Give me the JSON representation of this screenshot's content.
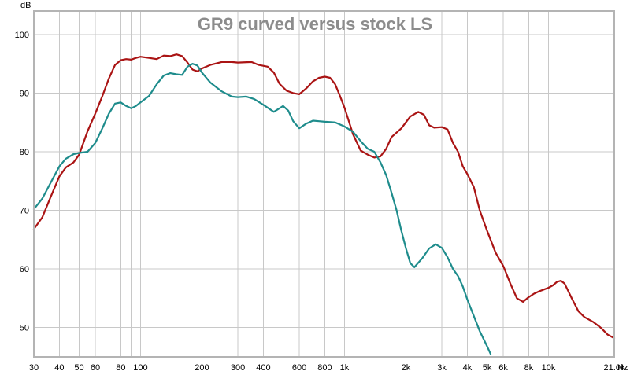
{
  "chart_data": {
    "type": "line",
    "title": "GR9 curved versus stock LS",
    "ylabel": "dB",
    "xlabel": "Hz",
    "x_scale": "log",
    "xlim": [
      30,
      21000
    ],
    "ylim": [
      45,
      104
    ],
    "grid": true,
    "legend": "none",
    "y_ticks": [
      50,
      60,
      70,
      80,
      90,
      100
    ],
    "x_major_ticks": [
      {
        "value": 30,
        "label": "30"
      },
      {
        "value": 40,
        "label": "40"
      },
      {
        "value": 50,
        "label": "50"
      },
      {
        "value": 60,
        "label": "60"
      },
      {
        "value": 80,
        "label": "80"
      },
      {
        "value": 100,
        "label": "100"
      },
      {
        "value": 200,
        "label": "200"
      },
      {
        "value": 300,
        "label": "300"
      },
      {
        "value": 400,
        "label": "400"
      },
      {
        "value": 600,
        "label": "600"
      },
      {
        "value": 800,
        "label": "800"
      },
      {
        "value": 1000,
        "label": "1k"
      },
      {
        "value": 2000,
        "label": "2k"
      },
      {
        "value": 3000,
        "label": "3k"
      },
      {
        "value": 4000,
        "label": "4k"
      },
      {
        "value": 5000,
        "label": "5k"
      },
      {
        "value": 6000,
        "label": "6k"
      },
      {
        "value": 8000,
        "label": "8k"
      },
      {
        "value": 10000,
        "label": "10k"
      },
      {
        "value": 21000,
        "label": "21.0k"
      }
    ],
    "x_minor_gridlines": [
      70,
      90,
      500,
      700,
      900,
      7000,
      9000,
      20000
    ],
    "series": [
      {
        "color": "#aa1414",
        "points": [
          [
            30,
            66.8
          ],
          [
            33,
            68.8
          ],
          [
            36,
            72
          ],
          [
            40,
            75.8
          ],
          [
            43,
            77.3
          ],
          [
            47,
            78.2
          ],
          [
            50,
            79.5
          ],
          [
            55,
            83.5
          ],
          [
            60,
            86.5
          ],
          [
            65,
            89.5
          ],
          [
            70,
            92.5
          ],
          [
            75,
            94.8
          ],
          [
            80,
            95.6
          ],
          [
            85,
            95.8
          ],
          [
            90,
            95.7
          ],
          [
            95,
            96
          ],
          [
            100,
            96.2
          ],
          [
            110,
            96
          ],
          [
            120,
            95.8
          ],
          [
            130,
            96.4
          ],
          [
            140,
            96.3
          ],
          [
            150,
            96.6
          ],
          [
            160,
            96.3
          ],
          [
            170,
            95.2
          ],
          [
            180,
            94
          ],
          [
            190,
            93.7
          ],
          [
            200,
            94.2
          ],
          [
            220,
            94.8
          ],
          [
            250,
            95.3
          ],
          [
            280,
            95.3
          ],
          [
            300,
            95.2
          ],
          [
            350,
            95.3
          ],
          [
            380,
            94.8
          ],
          [
            420,
            94.5
          ],
          [
            450,
            93.5
          ],
          [
            480,
            91.6
          ],
          [
            520,
            90.4
          ],
          [
            560,
            90
          ],
          [
            600,
            89.8
          ],
          [
            650,
            90.8
          ],
          [
            700,
            92
          ],
          [
            750,
            92.6
          ],
          [
            800,
            92.8
          ],
          [
            850,
            92.6
          ],
          [
            900,
            91.5
          ],
          [
            950,
            89.5
          ],
          [
            1000,
            87.5
          ],
          [
            1100,
            83
          ],
          [
            1200,
            80.2
          ],
          [
            1300,
            79.5
          ],
          [
            1400,
            79
          ],
          [
            1500,
            79.2
          ],
          [
            1600,
            80.5
          ],
          [
            1700,
            82.5
          ],
          [
            1900,
            84
          ],
          [
            2100,
            86
          ],
          [
            2300,
            86.8
          ],
          [
            2450,
            86.3
          ],
          [
            2600,
            84.5
          ],
          [
            2750,
            84.1
          ],
          [
            3000,
            84.2
          ],
          [
            3200,
            83.8
          ],
          [
            3400,
            81.5
          ],
          [
            3600,
            80
          ],
          [
            3800,
            77.5
          ],
          [
            4000,
            76.2
          ],
          [
            4300,
            74
          ],
          [
            4600,
            70
          ],
          [
            5000,
            66.5
          ],
          [
            5500,
            62.8
          ],
          [
            6000,
            60.5
          ],
          [
            6500,
            57.5
          ],
          [
            7000,
            55
          ],
          [
            7500,
            54.4
          ],
          [
            8000,
            55.2
          ],
          [
            8500,
            55.8
          ],
          [
            9000,
            56.2
          ],
          [
            9500,
            56.5
          ],
          [
            10000,
            56.8
          ],
          [
            10500,
            57.2
          ],
          [
            11000,
            57.8
          ],
          [
            11500,
            58
          ],
          [
            12000,
            57.5
          ],
          [
            13000,
            55
          ],
          [
            14000,
            52.8
          ],
          [
            15000,
            51.8
          ],
          [
            16500,
            51
          ],
          [
            18000,
            50
          ],
          [
            19500,
            48.8
          ],
          [
            21000,
            48.2
          ]
        ]
      },
      {
        "color": "#1e8c8c",
        "points": [
          [
            30,
            70.2
          ],
          [
            33,
            72
          ],
          [
            36,
            74.5
          ],
          [
            40,
            77.5
          ],
          [
            43,
            78.8
          ],
          [
            47,
            79.6
          ],
          [
            50,
            79.8
          ],
          [
            55,
            80
          ],
          [
            60,
            81.5
          ],
          [
            65,
            84
          ],
          [
            70,
            86.5
          ],
          [
            75,
            88.2
          ],
          [
            80,
            88.4
          ],
          [
            85,
            87.8
          ],
          [
            90,
            87.4
          ],
          [
            95,
            87.8
          ],
          [
            100,
            88.4
          ],
          [
            110,
            89.5
          ],
          [
            120,
            91.5
          ],
          [
            130,
            93
          ],
          [
            140,
            93.4
          ],
          [
            150,
            93.2
          ],
          [
            160,
            93.1
          ],
          [
            170,
            94.5
          ],
          [
            180,
            95
          ],
          [
            190,
            94.7
          ],
          [
            200,
            93.5
          ],
          [
            220,
            91.8
          ],
          [
            250,
            90.3
          ],
          [
            280,
            89.4
          ],
          [
            300,
            89.3
          ],
          [
            330,
            89.4
          ],
          [
            360,
            89
          ],
          [
            400,
            88
          ],
          [
            450,
            86.8
          ],
          [
            480,
            87.4
          ],
          [
            500,
            87.8
          ],
          [
            530,
            87
          ],
          [
            560,
            85.2
          ],
          [
            600,
            84
          ],
          [
            650,
            84.8
          ],
          [
            700,
            85.3
          ],
          [
            750,
            85.2
          ],
          [
            800,
            85.1
          ],
          [
            900,
            85
          ],
          [
            1000,
            84.3
          ],
          [
            1100,
            83.4
          ],
          [
            1200,
            81.8
          ],
          [
            1300,
            80.5
          ],
          [
            1400,
            80
          ],
          [
            1500,
            78.2
          ],
          [
            1600,
            76
          ],
          [
            1700,
            73
          ],
          [
            1800,
            70
          ],
          [
            1900,
            66.5
          ],
          [
            2000,
            63.5
          ],
          [
            2100,
            61
          ],
          [
            2200,
            60.3
          ],
          [
            2400,
            61.8
          ],
          [
            2600,
            63.5
          ],
          [
            2800,
            64.2
          ],
          [
            3000,
            63.6
          ],
          [
            3200,
            62
          ],
          [
            3400,
            60
          ],
          [
            3600,
            58.8
          ],
          [
            3800,
            57
          ],
          [
            4000,
            54.8
          ],
          [
            4300,
            52
          ],
          [
            4600,
            49.4
          ],
          [
            5000,
            46.8
          ],
          [
            5200,
            45.5
          ]
        ]
      }
    ]
  }
}
